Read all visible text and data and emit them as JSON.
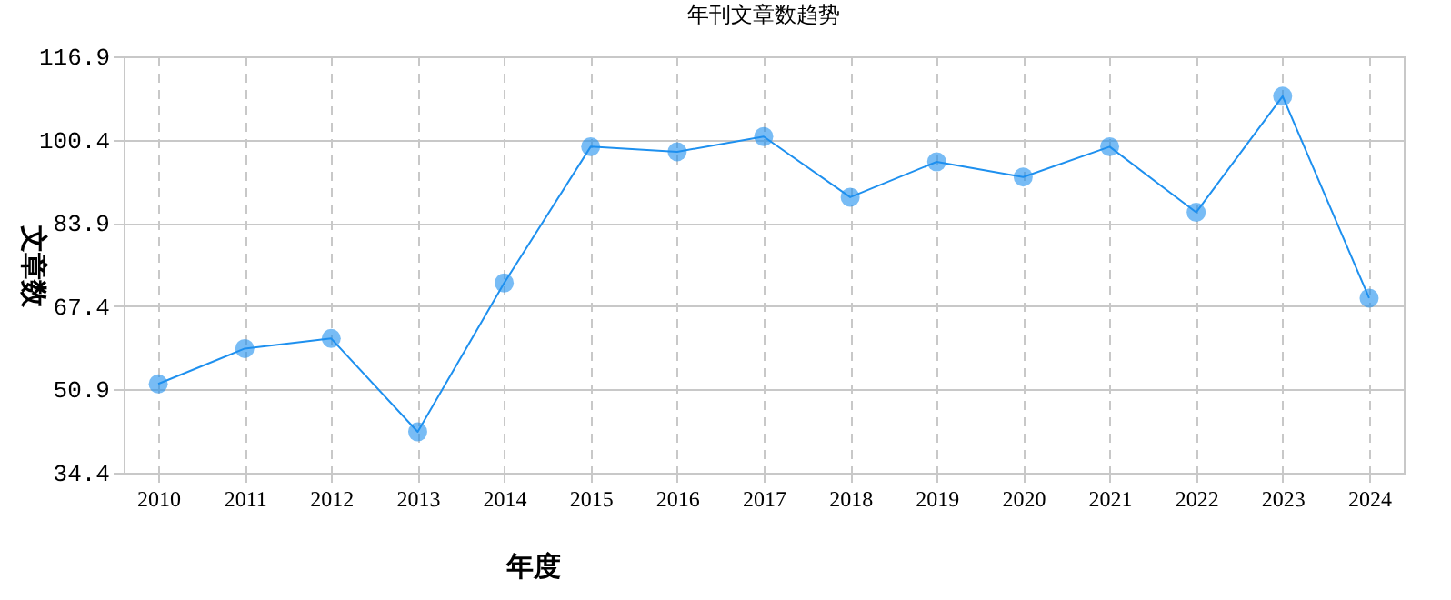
{
  "chart_data": {
    "type": "line",
    "title": "年刊文章数趋势",
    "xlabel": "年度",
    "ylabel": "文章数",
    "categories": [
      "2010",
      "2011",
      "2012",
      "2013",
      "2014",
      "2015",
      "2016",
      "2017",
      "2018",
      "2019",
      "2020",
      "2021",
      "2022",
      "2023",
      "2024"
    ],
    "series": [
      {
        "color": "#1e90ef",
        "values": [
          52,
          59,
          61,
          42.5,
          72,
          99,
          98,
          101,
          89,
          96,
          93,
          99,
          86,
          109,
          69
        ]
      }
    ],
    "ylim": [
      34.4,
      116.9
    ],
    "yticks": [
      34.4,
      50.9,
      67.4,
      83.9,
      100.4,
      116.9
    ],
    "grid": true,
    "marker": "circle",
    "line_style": "solid",
    "legend": false
  }
}
